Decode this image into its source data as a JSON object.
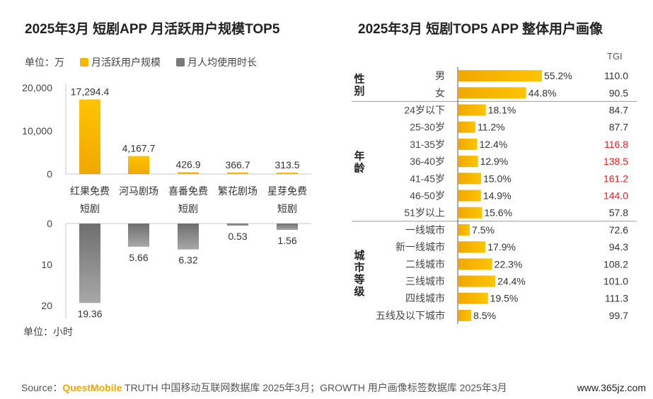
{
  "left_chart": {
    "title": "2025年3月 短剧APP 月活跃用户规模TOP5",
    "unit_label": "单位：万",
    "legend": [
      {
        "label": "月活跃用户规模",
        "color": "#f5b800"
      },
      {
        "label": "月人均使用时长",
        "color": "#7a7a7a"
      }
    ],
    "hours_unit_label": "单位：小时"
  },
  "right_chart": {
    "title": "2025年3月 短剧TOP5 APP 整体用户画像",
    "tgi_header": "TGI"
  },
  "source": {
    "prefix": "Source：",
    "brand": "QuestMobile",
    "text": " TRUTH 中国移动互联网数据库 2025年3月；GROWTH 用户画像标签数据库 2025年3月",
    "watermark": "www.365jz.com"
  },
  "colors": {
    "accent_yellow": "#f5b800",
    "bar_gray": "#7a7a7a",
    "tgi_highlight": "#e02020"
  },
  "chart_data": [
    {
      "type": "bar",
      "categories": [
        "红果免费短剧",
        "河马剧场",
        "喜番免费短剧",
        "繁花剧场",
        "星芽免费短剧"
      ],
      "series": [
        {
          "name": "月活跃用户规模",
          "values": [
            17294.4,
            4167.7,
            426.9,
            366.7,
            313.5
          ]
        }
      ],
      "value_labels": [
        "17,294.4",
        "4,167.7",
        "426.9",
        "366.7",
        "313.5"
      ],
      "ylim": [
        0,
        20000
      ],
      "yticks": [
        "0",
        "10,000",
        "20,000"
      ]
    },
    {
      "type": "bar",
      "orientation": "inverted",
      "categories": [
        "红果免费短剧",
        "河马剧场",
        "喜番免费短剧",
        "繁花剧场",
        "星芽免费短剧"
      ],
      "series": [
        {
          "name": "月人均使用时长",
          "values": [
            19.36,
            5.66,
            6.32,
            0.53,
            1.56
          ]
        }
      ],
      "value_labels": [
        "19.36",
        "5.66",
        "6.32",
        "0.53",
        "1.56"
      ],
      "ylim": [
        0,
        20
      ],
      "yticks": [
        "0",
        "10",
        "20"
      ]
    },
    {
      "type": "bar",
      "orientation": "horizontal",
      "groups": [
        {
          "name": "性别",
          "items": [
            {
              "label": "男",
              "value": 55.2,
              "value_label": "55.2%",
              "tgi": "110.0",
              "highlight": false
            },
            {
              "label": "女",
              "value": 44.8,
              "value_label": "44.8%",
              "tgi": "90.5",
              "highlight": false
            }
          ]
        },
        {
          "name": "年龄",
          "items": [
            {
              "label": "24岁以下",
              "value": 18.1,
              "value_label": "18.1%",
              "tgi": "84.7",
              "highlight": false
            },
            {
              "label": "25-30岁",
              "value": 11.2,
              "value_label": "11.2%",
              "tgi": "87.7",
              "highlight": false
            },
            {
              "label": "31-35岁",
              "value": 12.4,
              "value_label": "12.4%",
              "tgi": "116.8",
              "highlight": true
            },
            {
              "label": "36-40岁",
              "value": 12.9,
              "value_label": "12.9%",
              "tgi": "138.5",
              "highlight": true
            },
            {
              "label": "41-45岁",
              "value": 15.0,
              "value_label": "15.0%",
              "tgi": "161.2",
              "highlight": true
            },
            {
              "label": "46-50岁",
              "value": 14.9,
              "value_label": "14.9%",
              "tgi": "144.0",
              "highlight": true
            },
            {
              "label": "51岁以上",
              "value": 15.6,
              "value_label": "15.6%",
              "tgi": "57.8",
              "highlight": false
            }
          ]
        },
        {
          "name": "城市等级",
          "items": [
            {
              "label": "一线城市",
              "value": 7.5,
              "value_label": "7.5%",
              "tgi": "72.6",
              "highlight": false
            },
            {
              "label": "新一线城市",
              "value": 17.9,
              "value_label": "17.9%",
              "tgi": "94.3",
              "highlight": false
            },
            {
              "label": "二线城市",
              "value": 22.3,
              "value_label": "22.3%",
              "tgi": "108.2",
              "highlight": false
            },
            {
              "label": "三线城市",
              "value": 24.4,
              "value_label": "24.4%",
              "tgi": "101.0",
              "highlight": false
            },
            {
              "label": "四线城市",
              "value": 19.5,
              "value_label": "19.5%",
              "tgi": "111.3",
              "highlight": false
            },
            {
              "label": "五线及以下城市",
              "value": 8.5,
              "value_label": "8.5%",
              "tgi": "99.7",
              "highlight": false
            }
          ]
        }
      ]
    }
  ]
}
